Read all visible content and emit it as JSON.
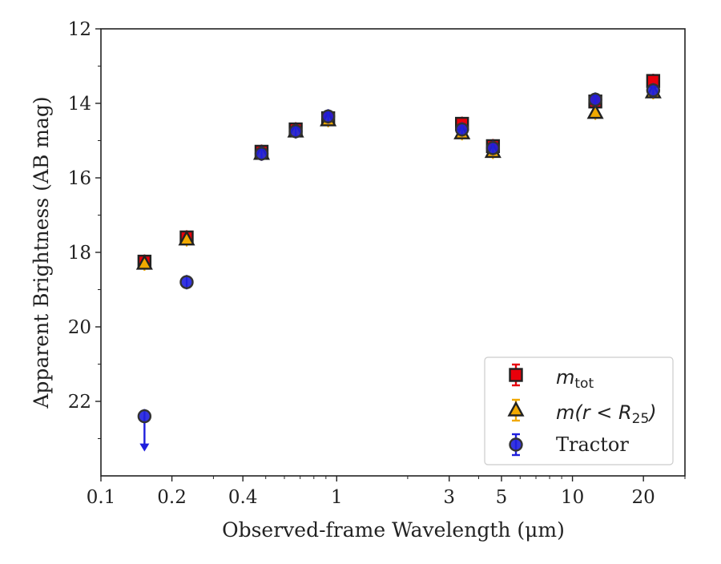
{
  "chart_data": {
    "type": "scatter",
    "xlabel": "Observed-frame Wavelength (μm)",
    "ylabel": "Apparent Brightness (AB mag)",
    "xscale": "log",
    "xlim": [
      0.1,
      30
    ],
    "ylim": [
      24,
      12
    ],
    "y_inverted": true,
    "xticks": [
      0.1,
      0.2,
      0.4,
      1,
      3,
      5,
      10,
      20
    ],
    "xtick_labels": [
      "0.1",
      "0.2",
      "0.4",
      "1",
      "3",
      "5",
      "10",
      "20"
    ],
    "yticks": [
      12,
      14,
      16,
      18,
      20,
      22
    ],
    "ytick_labels": [
      "12",
      "14",
      "16",
      "18",
      "20",
      "22"
    ],
    "grid": false,
    "legend_position": "lower-right",
    "series": [
      {
        "name": "m_tot",
        "marker": "square",
        "color": "#e8000b",
        "edge_color": "#222222",
        "points": [
          {
            "x": 0.153,
            "y": 18.25
          },
          {
            "x": 0.231,
            "y": 17.6
          },
          {
            "x": 0.48,
            "y": 15.3
          },
          {
            "x": 0.67,
            "y": 14.7
          },
          {
            "x": 0.92,
            "y": 14.4
          },
          {
            "x": 3.4,
            "y": 14.55
          },
          {
            "x": 4.6,
            "y": 15.15
          },
          {
            "x": 12.5,
            "y": 13.95
          },
          {
            "x": 22.0,
            "y": 13.4
          }
        ]
      },
      {
        "name": "m(r < R_25)",
        "marker": "triangle",
        "color": "#f1a900",
        "edge_color": "#222222",
        "points": [
          {
            "x": 0.153,
            "y": 18.3
          },
          {
            "x": 0.231,
            "y": 17.65
          },
          {
            "x": 0.48,
            "y": 15.35
          },
          {
            "x": 0.67,
            "y": 14.75
          },
          {
            "x": 0.92,
            "y": 14.45
          },
          {
            "x": 3.4,
            "y": 14.8
          },
          {
            "x": 4.6,
            "y": 15.3
          },
          {
            "x": 12.5,
            "y": 14.25
          },
          {
            "x": 22.0,
            "y": 13.7
          }
        ]
      },
      {
        "name": "Tractor",
        "marker": "circle",
        "color": "#1f1fdd",
        "edge_color": "#333333",
        "points": [
          {
            "x": 0.153,
            "y": 22.4,
            "upper_limit": true
          },
          {
            "x": 0.231,
            "y": 18.8
          },
          {
            "x": 0.48,
            "y": 15.35
          },
          {
            "x": 0.67,
            "y": 14.75
          },
          {
            "x": 0.92,
            "y": 14.35
          },
          {
            "x": 3.4,
            "y": 14.7
          },
          {
            "x": 4.6,
            "y": 15.2
          },
          {
            "x": 12.5,
            "y": 13.9
          },
          {
            "x": 22.0,
            "y": 13.65
          }
        ]
      }
    ]
  },
  "legend": {
    "tot_main": "m",
    "tot_sub": "tot",
    "r25_prefix": "m(r < R",
    "r25_sub": "25",
    "r25_suffix": ")",
    "tractor": "Tractor"
  }
}
